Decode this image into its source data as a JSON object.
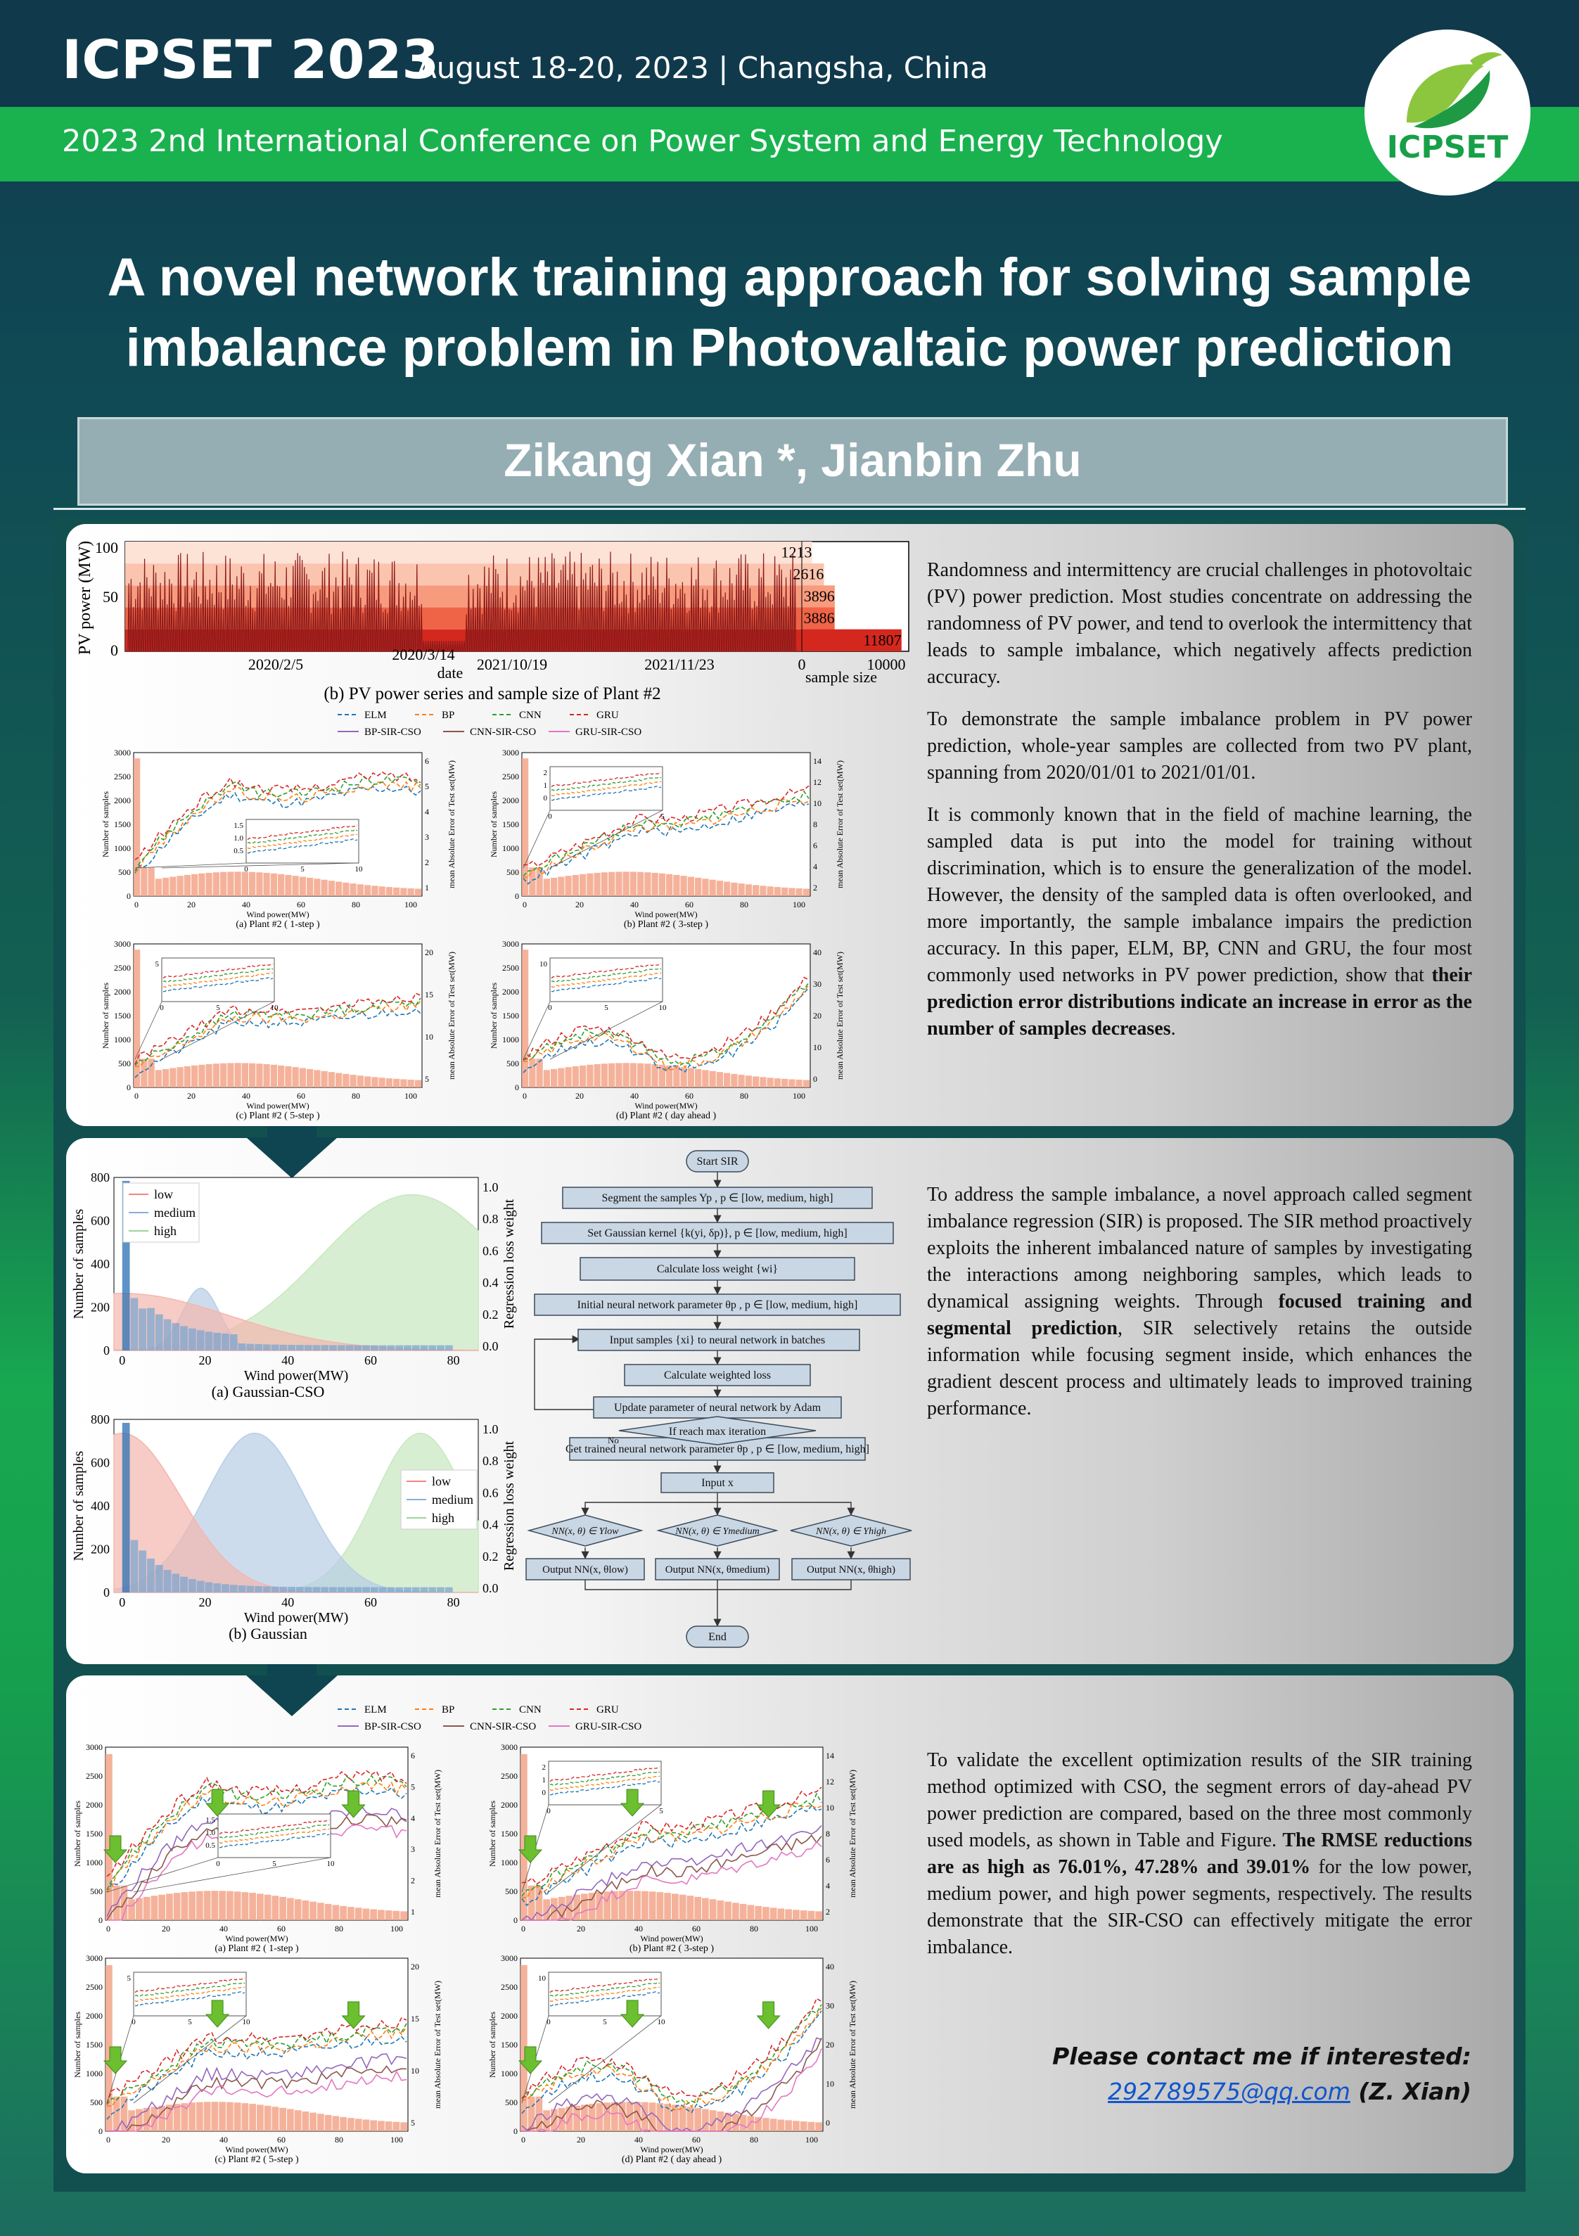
{
  "header": {
    "conference": "ICPSET 2023",
    "date_place": "August 18-20, 2023 | Changsha, China",
    "full_name": "2023 2nd International Conference on Power System and Energy Technology",
    "logo_text": "ICPSET"
  },
  "title": "A novel network training approach for solving sample imbalance problem in Photovaltaic power prediction",
  "authors": "Zikang Xian *, Jianbin Zhu",
  "section1": {
    "p1": "Randomness and intermittency are crucial challenges in photovoltaic (PV) power prediction. Most studies concentrate on addressing the randomness of PV power, and tend to overlook the intermittency that leads to sample imbalance, which negatively affects prediction accuracy.",
    "p2": "To demonstrate the sample imbalance problem in PV power prediction, whole-year samples are collected from two PV plant, spanning from 2020/01/01 to 2021/01/01.",
    "p3_a": "It is commonly known that in the field of machine learning, the sampled data is put into the model for training without discrimination, which is to ensure the generalization of the model. However, the density of the sampled data is often overlooked, and more importantly, the sample imbalance impairs the prediction accuracy. In this paper, ELM, BP, CNN and GRU, the four most commonly used networks in PV power prediction, show that ",
    "p3_b": "their prediction error distributions indicate an increase in error as the number of samples decreases",
    "p3_c": "."
  },
  "section2": {
    "p_a": "To address the sample imbalance, a novel approach called segment imbalance regression (SIR) is proposed. The SIR method proactively exploits the inherent imbalanced nature of samples by investigating the interactions among neighboring samples, which leads to dynamical assigning weights. Through ",
    "p_b": "focused training and segmental prediction",
    "p_c": ", SIR selectively retains the outside information while focusing segment inside, which enhances the gradient descent process and ultimately leads to improved training performance."
  },
  "section3": {
    "p_a": "To validate the excellent optimization results of the SIR training method optimized with CSO, the segment errors of day-ahead PV power prediction are compared, based on the three most commonly used models, as shown in Table and Figure. ",
    "p_b": "The RMSE reductions are as high as 76.01%, 47.28% and 39.01%",
    "p_c": " for the low power, medium power, and high power segments, respectively. The results demonstrate that the SIR-CSO can effectively mitigate the error imbalance."
  },
  "contact": {
    "line1": "Please contact me if interested:",
    "email": "292789575@qq.com",
    "name": " (Z. Xian)"
  },
  "fig_pv": {
    "ylabel": "PV power (MW)",
    "yticks": [
      "100",
      "50",
      "0"
    ],
    "xticks": [
      "2020/2/5",
      "2020/3/14",
      "2021/10/19",
      "2021/11/23"
    ],
    "xlabel": "date",
    "size_xticks": [
      "0",
      "10000"
    ],
    "size_label": "sample size",
    "caption": "(b) PV power series and sample size of Plant #2",
    "sample_sizes": [
      1213,
      2616,
      3896,
      3886,
      11807
    ],
    "size_max": 12500
  },
  "fig_legend": {
    "row1": [
      "ELM",
      "BP",
      "CNN",
      "GRU"
    ],
    "row2": [
      "BP-SIR-CSO",
      "CNN-SIR-CSO",
      "GRU-SIR-CSO"
    ],
    "colors": [
      "#1f77b4",
      "#ff7f0e",
      "#2ca02c",
      "#d62728",
      "#9467bd",
      "#8c564b",
      "#e377c2"
    ]
  },
  "fig_err_common": {
    "xlabel": "Wind power(MW)",
    "ylabel_left": "Number of samples",
    "ylabel_right": "mean Absolute Error of Test set(MW)",
    "xticks": [
      "0",
      "20",
      "40",
      "60",
      "80",
      "100"
    ],
    "yticks_left": [
      "3000",
      "2500",
      "2000",
      "1500",
      "1000",
      "500",
      "0"
    ]
  },
  "fig_err": [
    {
      "caption": "(a) Plant #2 ( 1-step )",
      "right_ticks": [
        "6",
        "5",
        "4",
        "3",
        "2",
        "1"
      ],
      "inset_y": [
        "1.5",
        "1.0",
        "0.5"
      ],
      "inset_x": [
        "0",
        "5",
        "10"
      ]
    },
    {
      "caption": "(b) Plant #2 ( 3-step )",
      "right_ticks": [
        "14",
        "12",
        "10",
        "8",
        "6",
        "4",
        "2"
      ],
      "inset_y": [
        "2",
        "1",
        "0"
      ],
      "inset_x": [
        "0",
        "5"
      ]
    },
    {
      "caption": "(c) Plant #2 ( 5-step )",
      "right_ticks": [
        "20",
        "15",
        "10",
        "5"
      ],
      "inset_y": [
        "5"
      ],
      "inset_x": [
        "0",
        "5",
        "10"
      ]
    },
    {
      "caption": "(d) Plant #2 ( day ahead )",
      "right_ticks": [
        "40",
        "30",
        "20",
        "10",
        "0"
      ],
      "inset_y": [
        "10"
      ],
      "inset_x": [
        "0",
        "5",
        "10"
      ]
    }
  ],
  "fig_gauss": [
    {
      "caption": "(a)  Gaussian-CSO",
      "legend": [
        "low",
        "medium",
        "high"
      ]
    },
    {
      "caption": "(b)  Gaussian",
      "legend": [
        "low",
        "medium",
        "high"
      ]
    }
  ],
  "fig_gauss_common": {
    "xlabel": "Wind power(MW)",
    "ylabel_left": "Number of samples",
    "ylabel_right": "Regression loss weight",
    "yticks_left": [
      "800",
      "600",
      "400",
      "200",
      "0"
    ],
    "yticks_right": [
      "1.0",
      "0.8",
      "0.6",
      "0.4",
      "0.2",
      "0.0"
    ],
    "xticks": [
      "0",
      "20",
      "40",
      "60",
      "80"
    ]
  },
  "flow": {
    "start": "Start SIR",
    "s1": "Segment the samples Yp   , p ∈ [low, medium, high]",
    "s2": "Set Gaussian kernel {k(yi, δp)}, p ∈ [low, medium, high]",
    "s3": "Calculate loss weight {wi}",
    "s4": "Initial neural network parameter θp   , p ∈ [low, medium, high]",
    "s5": "Input samples {xi} to neural network in batches",
    "s6": "Calculate weighted loss",
    "s7": "Update parameter of neural network by Adam",
    "s8": "If reach max iteration",
    "no": "No",
    "s9": "Get trained neural network parameter θp   , p ∈ [low, medium, high]",
    "s10": "Input  x",
    "d1": "NN(x, θ) ∈ Ylow",
    "d2": "NN(x, θ) ∈ Ymedium",
    "d3": "NN(x, θ) ∈ Yhigh",
    "o1": "Output NN(x, θlow)",
    "o2": "Output NN(x, θmedium)",
    "o3": "Output NN(x, θhigh)",
    "end": "End"
  }
}
